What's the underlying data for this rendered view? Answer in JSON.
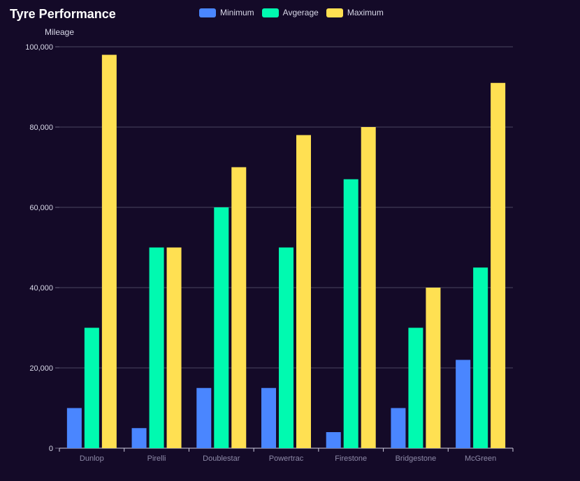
{
  "chart_data": {
    "type": "bar",
    "title": "Tyre Performance",
    "ylabel": "Mileage",
    "xlabel": "",
    "categories": [
      "Dunlop",
      "Pirelli",
      "Doublestar",
      "Powertrac",
      "Firestone",
      "Bridgestone",
      "McGreen"
    ],
    "series": [
      {
        "name": "Minimum",
        "color": "#4a86ff",
        "values": [
          10000,
          5000,
          15000,
          15000,
          4000,
          10000,
          22000
        ]
      },
      {
        "name": "Avgerage",
        "color": "#00fab0",
        "values": [
          30000,
          50000,
          60000,
          50000,
          67000,
          30000,
          45000
        ]
      },
      {
        "name": "Maximum",
        "color": "#ffe052",
        "values": [
          98000,
          50000,
          70000,
          78000,
          80000,
          40000,
          91000
        ]
      }
    ],
    "ylim": [
      0,
      100000
    ],
    "yticks": [
      "0",
      "20,000",
      "40,000",
      "60,000",
      "80,000",
      "100,000"
    ],
    "grid": true,
    "legend_position": "top-center"
  }
}
